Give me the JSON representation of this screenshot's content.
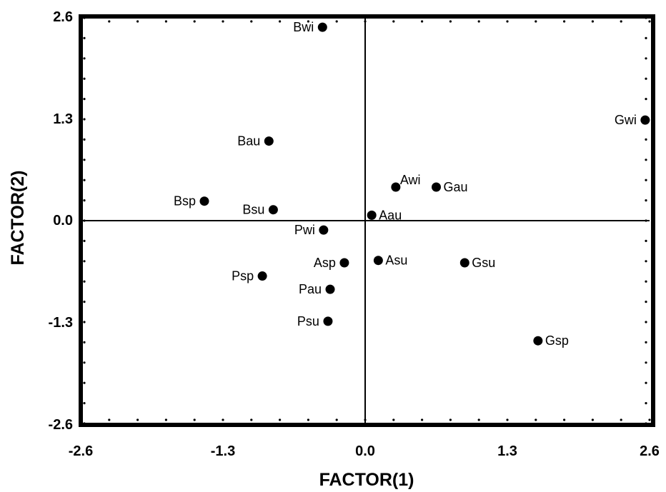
{
  "chart_data": {
    "type": "scatter",
    "title": "",
    "xlabel": "FACTOR(1)",
    "ylabel": "FACTOR(2)",
    "xlim": [
      -2.6,
      2.6
    ],
    "ylim": [
      -2.6,
      2.6
    ],
    "x_ticks": [
      "-2.6",
      "-1.3",
      "0.0",
      "1.3",
      "2.6"
    ],
    "y_ticks": [
      "2.6",
      "1.3",
      "0.0",
      "-1.3",
      "-2.6"
    ],
    "grid": false,
    "reference_lines": {
      "x": 0,
      "y": 0
    },
    "points": [
      {
        "label": "Bwi",
        "x": -0.39,
        "y": 2.48,
        "label_side": "left"
      },
      {
        "label": "Gwi",
        "x": 2.56,
        "y": 1.29,
        "label_side": "left"
      },
      {
        "label": "Bau",
        "x": -0.88,
        "y": 1.02,
        "label_side": "left"
      },
      {
        "label": "Awi",
        "x": 0.28,
        "y": 0.43,
        "label_side": "right-up"
      },
      {
        "label": "Gau",
        "x": 0.65,
        "y": 0.43,
        "label_side": "right"
      },
      {
        "label": "Bsp",
        "x": -1.47,
        "y": 0.25,
        "label_side": "left"
      },
      {
        "label": "Bsu",
        "x": -0.84,
        "y": 0.14,
        "label_side": "left"
      },
      {
        "label": "Aau",
        "x": 0.06,
        "y": 0.07,
        "label_side": "right"
      },
      {
        "label": "Pwi",
        "x": -0.38,
        "y": -0.12,
        "label_side": "left"
      },
      {
        "label": "Asu",
        "x": 0.12,
        "y": -0.51,
        "label_side": "right"
      },
      {
        "label": "Asp",
        "x": -0.19,
        "y": -0.54,
        "label_side": "left"
      },
      {
        "label": "Gsu",
        "x": 0.91,
        "y": -0.54,
        "label_side": "right"
      },
      {
        "label": "Psp",
        "x": -0.94,
        "y": -0.71,
        "label_side": "left"
      },
      {
        "label": "Pau",
        "x": -0.32,
        "y": -0.88,
        "label_side": "left"
      },
      {
        "label": "Psu",
        "x": -0.34,
        "y": -1.29,
        "label_side": "left"
      },
      {
        "label": "Gsp",
        "x": 1.58,
        "y": -1.54,
        "label_side": "right"
      }
    ]
  }
}
